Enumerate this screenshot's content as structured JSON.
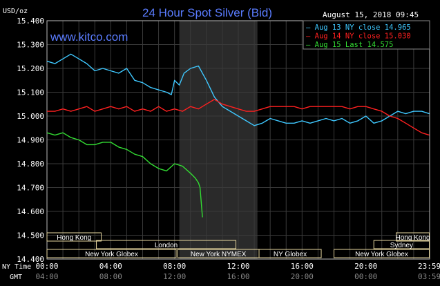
{
  "chart_data": {
    "type": "line",
    "title": "24 Hour Spot Silver (Bid)",
    "ylabel": "USD/oz",
    "watermark": "www.kitco.com",
    "timestamp": "August 15, 2018 09:45",
    "ylim": [
      14.4,
      15.4
    ],
    "yticks": [
      "15.400",
      "15.300",
      "15.200",
      "15.100",
      "15.000",
      "14.900",
      "14.800",
      "14.700",
      "14.600",
      "14.500",
      "14.400"
    ],
    "xlim": [
      0,
      24
    ],
    "ny_time_label": "NY Time",
    "gmt_label": "GMT",
    "ny_ticks": [
      "00:00",
      "04:00",
      "08:00",
      "12:00",
      "16:00",
      "20:00",
      "23:59"
    ],
    "gmt_ticks": [
      "04:00",
      "08:00",
      "12:00",
      "16:00",
      "20:00",
      "00:00",
      "03:59"
    ],
    "shaded_region": [
      8.3,
      13.2
    ],
    "colors": {
      "background": "#000000",
      "grid": "#3a3a3a",
      "axis_text": "#ffffff",
      "title": "#5a7cff",
      "shade": "#2a2a2a",
      "session_fill": "#e8d8a0"
    },
    "series": [
      {
        "name": "Aug 13 NY close 14.965",
        "color": "#3fc8ff",
        "x": [
          0.0,
          0.5,
          1.0,
          1.5,
          2.0,
          2.5,
          3.0,
          3.5,
          4.0,
          4.5,
          5.0,
          5.5,
          6.0,
          6.5,
          7.0,
          7.5,
          7.8,
          8.0,
          8.3,
          8.6,
          9.0,
          9.5,
          10.0,
          10.5,
          11.0,
          11.5,
          12.0,
          12.5,
          13.0,
          13.5,
          14.0,
          14.5,
          15.0,
          15.5,
          16.0,
          16.5,
          17.0,
          17.5,
          18.0,
          18.5,
          19.0,
          19.5,
          20.0,
          20.5,
          21.0,
          21.5,
          22.0,
          22.5,
          23.0,
          23.5,
          23.98
        ],
        "y": [
          15.23,
          15.22,
          15.24,
          15.26,
          15.24,
          15.22,
          15.19,
          15.2,
          15.19,
          15.18,
          15.2,
          15.15,
          15.14,
          15.12,
          15.11,
          15.1,
          15.09,
          15.15,
          15.13,
          15.18,
          15.2,
          15.21,
          15.15,
          15.08,
          15.04,
          15.02,
          15.0,
          14.98,
          14.96,
          14.97,
          14.99,
          14.98,
          14.97,
          14.97,
          14.98,
          14.97,
          14.98,
          14.99,
          14.98,
          14.99,
          14.97,
          14.98,
          15.0,
          14.97,
          14.98,
          15.0,
          15.02,
          15.01,
          15.02,
          15.02,
          15.01
        ]
      },
      {
        "name": "Aug 14 NY close 15.030",
        "color": "#ff2020",
        "x": [
          0.0,
          0.5,
          1.0,
          1.5,
          2.0,
          2.5,
          3.0,
          3.5,
          4.0,
          4.5,
          5.0,
          5.5,
          6.0,
          6.5,
          7.0,
          7.5,
          8.0,
          8.5,
          9.0,
          9.5,
          10.0,
          10.5,
          11.0,
          11.5,
          12.0,
          12.5,
          13.0,
          13.5,
          14.0,
          14.5,
          15.0,
          15.5,
          16.0,
          16.5,
          17.0,
          17.5,
          18.0,
          18.5,
          19.0,
          19.5,
          20.0,
          20.5,
          21.0,
          21.5,
          22.0,
          22.5,
          23.0,
          23.5,
          23.98
        ],
        "y": [
          15.02,
          15.02,
          15.03,
          15.02,
          15.03,
          15.04,
          15.02,
          15.03,
          15.04,
          15.03,
          15.04,
          15.02,
          15.03,
          15.02,
          15.04,
          15.02,
          15.03,
          15.02,
          15.04,
          15.03,
          15.05,
          15.07,
          15.05,
          15.04,
          15.03,
          15.02,
          15.02,
          15.03,
          15.04,
          15.04,
          15.04,
          15.04,
          15.03,
          15.04,
          15.04,
          15.04,
          15.04,
          15.04,
          15.03,
          15.04,
          15.04,
          15.03,
          15.02,
          15.0,
          14.99,
          14.97,
          14.95,
          14.93,
          14.92
        ]
      },
      {
        "name": "Aug 15 Last 14.575",
        "color": "#33dd33",
        "x": [
          0.0,
          0.5,
          1.0,
          1.5,
          2.0,
          2.5,
          3.0,
          3.5,
          4.0,
          4.5,
          5.0,
          5.5,
          6.0,
          6.5,
          7.0,
          7.5,
          8.0,
          8.5,
          9.0,
          9.3,
          9.5,
          9.6,
          9.75
        ],
        "y": [
          14.93,
          14.92,
          14.93,
          14.91,
          14.9,
          14.88,
          14.88,
          14.89,
          14.89,
          14.87,
          14.86,
          14.84,
          14.83,
          14.8,
          14.78,
          14.77,
          14.8,
          14.79,
          14.76,
          14.74,
          14.72,
          14.7,
          14.575
        ]
      }
    ],
    "sessions": [
      {
        "label": "Hong Kong",
        "start": 0.0,
        "end": 3.4,
        "row": 0
      },
      {
        "label": "Hong Kong",
        "start": 21.9,
        "end": 23.98,
        "row": 0
      },
      {
        "label": "London",
        "start": 3.1,
        "end": 11.85,
        "row": 1
      },
      {
        "label": "Sydney",
        "start": 20.5,
        "end": 23.98,
        "row": 1
      },
      {
        "label": "New York Globex",
        "start": 0.0,
        "end": 8.1,
        "row": 2
      },
      {
        "label": "New York NYMEX",
        "start": 8.2,
        "end": 13.3,
        "row": 2
      },
      {
        "label": "NY Globex",
        "start": 13.3,
        "end": 17.2,
        "row": 2
      },
      {
        "label": "New York Globex",
        "start": 18.0,
        "end": 23.98,
        "row": 2
      }
    ]
  }
}
